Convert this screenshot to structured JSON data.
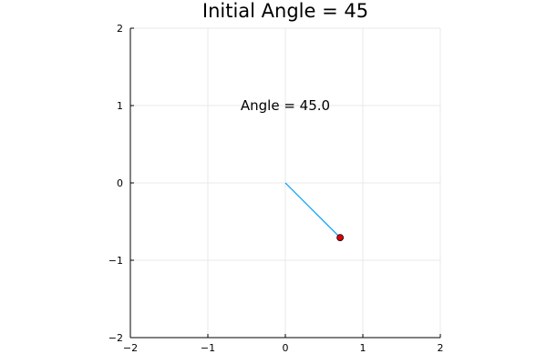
{
  "chart_data": {
    "type": "line",
    "title": "Initial Angle = 45",
    "xlabel": "",
    "ylabel": "",
    "xlim": [
      -2,
      2
    ],
    "ylim": [
      -2,
      2
    ],
    "grid": true,
    "legend": "none",
    "x_ticks": [
      -2,
      -1,
      0,
      1,
      2
    ],
    "x_tick_labels": [
      "−2",
      "−1",
      "0",
      "1",
      "2"
    ],
    "y_ticks": [
      -2,
      -1,
      0,
      1,
      2
    ],
    "y_tick_labels": [
      "−2",
      "−1",
      "0",
      "1",
      "2"
    ],
    "series": [
      {
        "type": "line",
        "color": "#009AFA",
        "points": [
          [
            0,
            0
          ],
          [
            0.707,
            -0.707
          ]
        ]
      },
      {
        "type": "scatter",
        "color": "#E00000",
        "points": [
          [
            0.707,
            -0.707
          ]
        ]
      }
    ],
    "annotations": [
      {
        "text": "Angle = 45.0",
        "x": 0,
        "y": 1
      }
    ]
  }
}
